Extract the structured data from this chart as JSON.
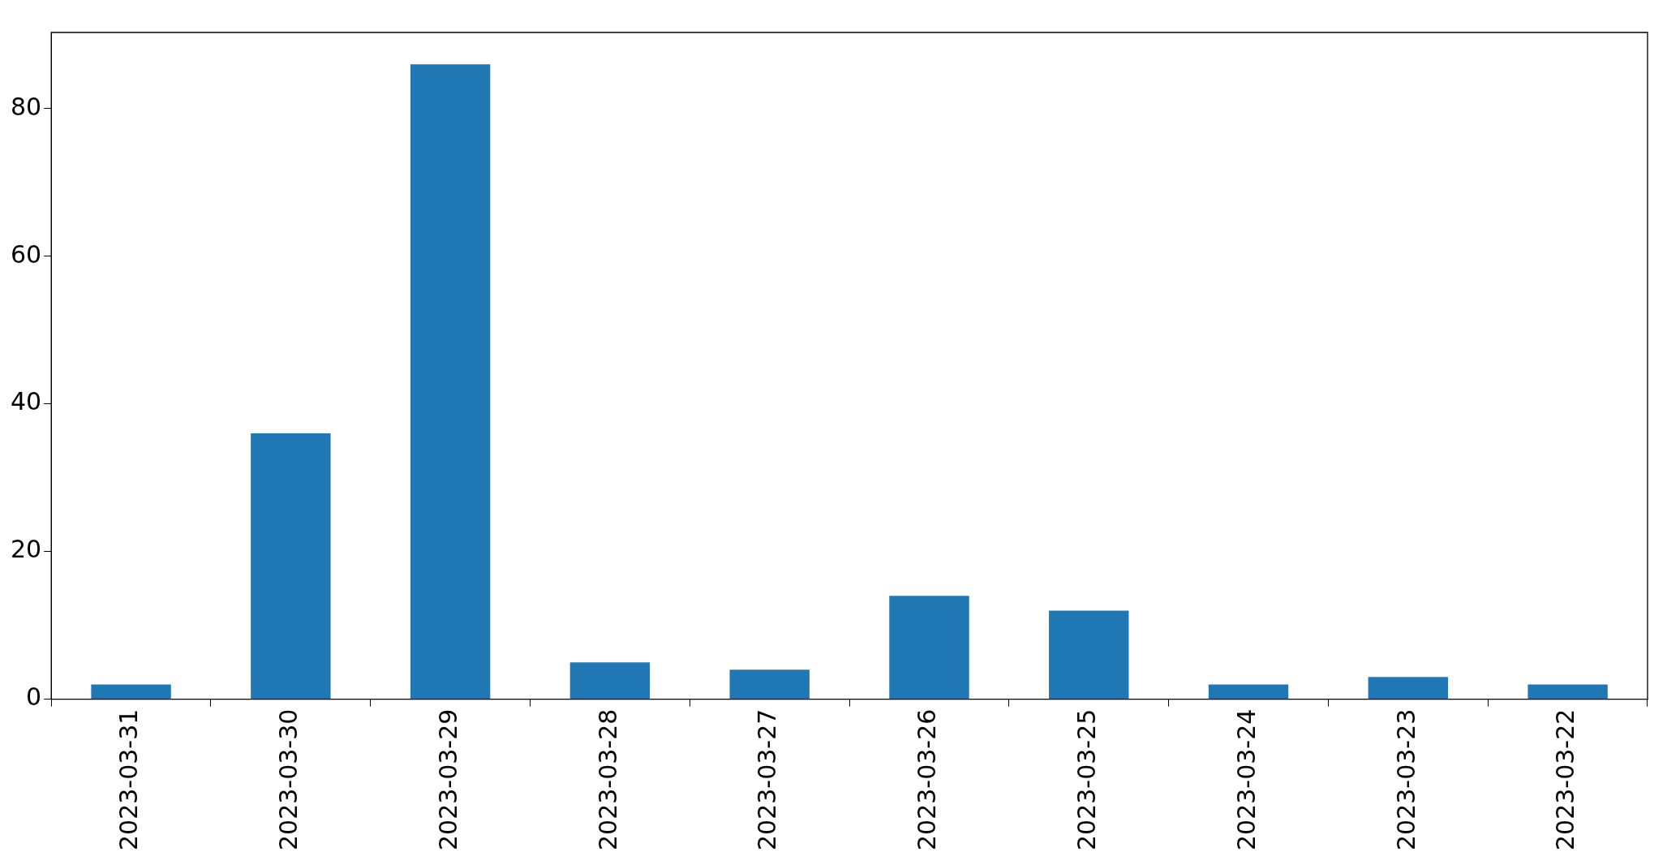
{
  "chart_data": {
    "type": "bar",
    "categories": [
      "2023-03-31",
      "2023-03-30",
      "2023-03-29",
      "2023-03-28",
      "2023-03-27",
      "2023-03-26",
      "2023-03-25",
      "2023-03-24",
      "2023-03-23",
      "2023-03-22"
    ],
    "values": [
      2,
      36,
      86,
      5,
      4,
      14,
      12,
      2,
      3,
      2
    ],
    "color": "#1f77b4",
    "ylim": [
      0,
      90.3
    ],
    "yticks": [
      0,
      20,
      40,
      60,
      80
    ],
    "grid": false,
    "legend": false
  }
}
